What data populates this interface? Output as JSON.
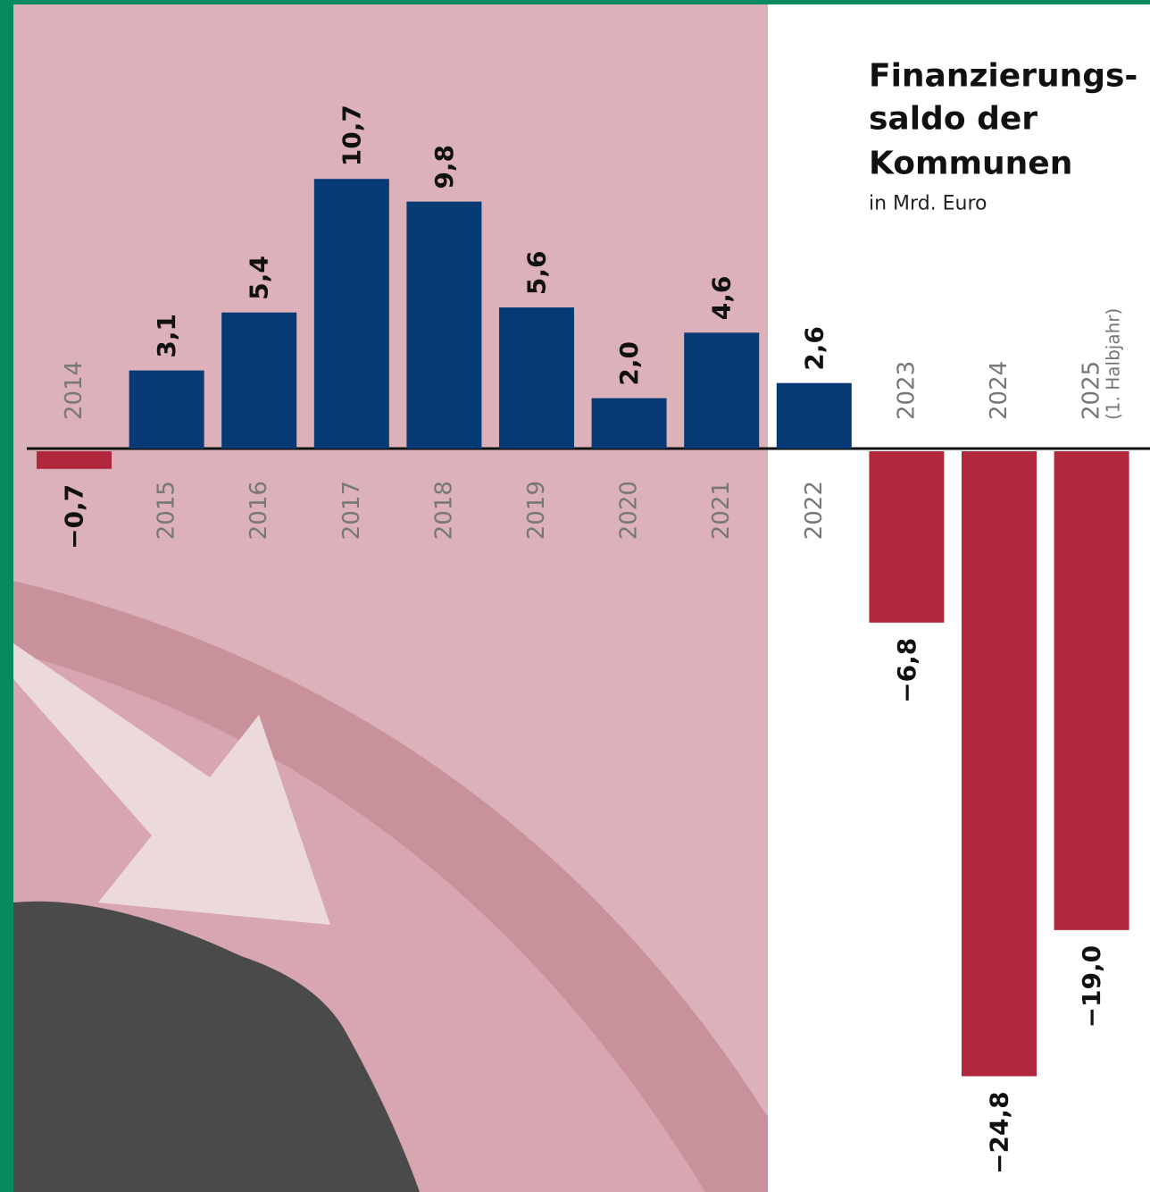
{
  "chart_data": {
    "type": "bar",
    "title_lines": [
      "Finanzierungs-",
      "saldo der",
      "Kommunen"
    ],
    "subtitle": "in Mrd. Euro",
    "categories": [
      "2014",
      "2015",
      "2016",
      "2017",
      "2018",
      "2019",
      "2020",
      "2021",
      "2022",
      "2023",
      "2024",
      "2025"
    ],
    "category_note": "(1. Halbjahr)",
    "values": [
      -0.7,
      3.1,
      5.4,
      10.7,
      9.8,
      5.6,
      2.0,
      4.6,
      2.6,
      -6.8,
      -24.8,
      -19.0
    ],
    "value_labels": [
      "−0,7",
      "3,1",
      "5,4",
      "10,7",
      "9,8",
      "5,6",
      "2,0",
      "4,6",
      "2,6",
      "−6,8",
      "−24,8",
      "−19,0"
    ],
    "positive_color": "#063a75",
    "negative_color": "#b1283c",
    "ylim": [
      -29.5,
      17.8
    ]
  }
}
